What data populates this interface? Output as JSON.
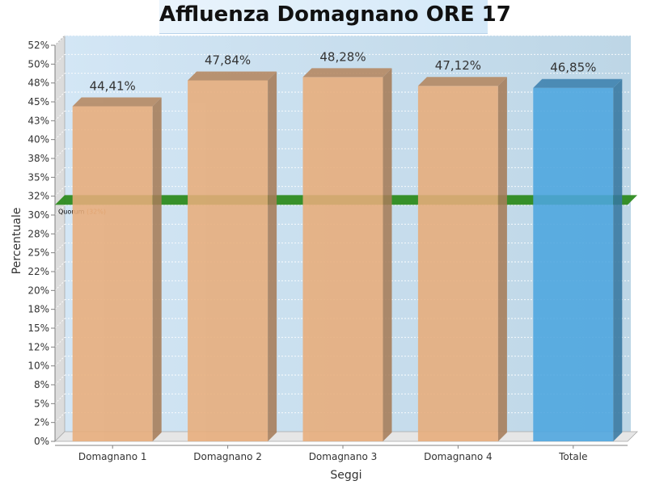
{
  "chart_data": {
    "type": "bar",
    "title": "Affluenza Domagnano ORE 17",
    "xlabel": "Seggi",
    "ylabel": "Percentuale",
    "categories": [
      "Domagnano 1",
      "Domagnano 2",
      "Domagnano 3",
      "Domagnano 4",
      "Totale"
    ],
    "values": [
      44.41,
      47.84,
      48.28,
      47.12,
      46.85
    ],
    "value_labels": [
      "44,41%",
      "47,84%",
      "48,28%",
      "47,12%",
      "46,85%"
    ],
    "bar_colors": [
      "#e8ad7b",
      "#e8ad7b",
      "#e8ad7b",
      "#e8ad7b",
      "#4da6e0"
    ],
    "ylim": [
      0,
      52.5
    ],
    "y_ticks": [
      0,
      2.5,
      5,
      7.5,
      10,
      12.5,
      15,
      17.5,
      20,
      22.5,
      25,
      27.5,
      30,
      32.5,
      35,
      37.5,
      40,
      42.5,
      45,
      47.5,
      50,
      52.5
    ],
    "y_tick_labels": [
      "0%",
      "2%",
      "5%",
      "8%",
      "10%",
      "12%",
      "15%",
      "18%",
      "20%",
      "22%",
      "25%",
      "28%",
      "30%",
      "32%",
      "35%",
      "38%",
      "40%",
      "43%",
      "45%",
      "48%",
      "50%",
      "52%"
    ],
    "grid": true,
    "style": "3d",
    "reference_line": {
      "value": 32,
      "label": "Quorum",
      "value_text": "(32%)",
      "color": "#2e8b1f"
    }
  }
}
